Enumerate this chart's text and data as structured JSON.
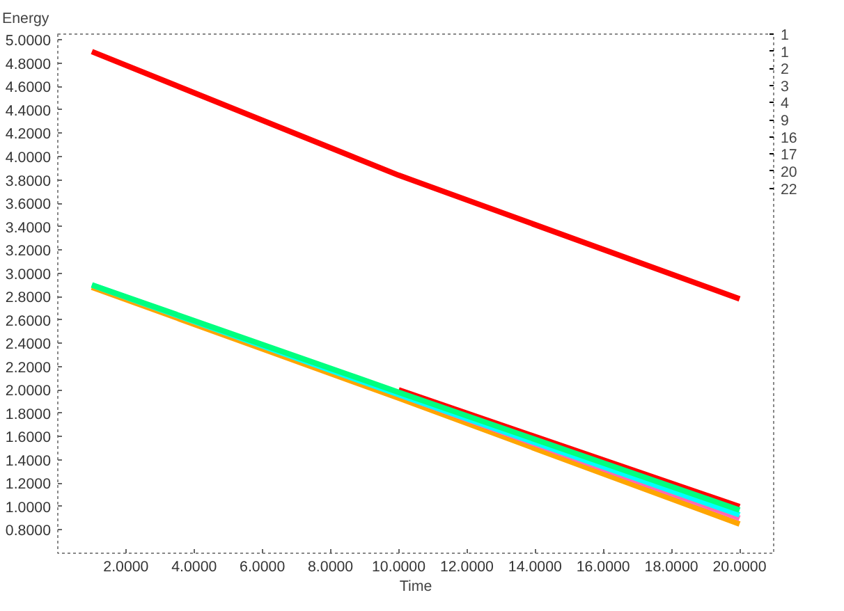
{
  "chart_data": {
    "type": "line",
    "xlabel": "Time",
    "ylabel": "Energy",
    "x": [
      1,
      10,
      20
    ],
    "series": [
      {
        "color": "#ff0000",
        "values": [
          4.9,
          3.84,
          2.78
        ]
      },
      {
        "color": "#ff0000",
        "values": [
          null,
          2.0,
          1.0
        ]
      },
      {
        "color": "#ffa500",
        "values": [
          2.88,
          1.93,
          0.85
        ]
      },
      {
        "color": "#ff69b4",
        "values": [
          null,
          1.96,
          0.9
        ]
      },
      {
        "color": "#00ffff",
        "values": [
          2.9,
          1.96,
          0.93
        ]
      },
      {
        "color": "#00ff7f",
        "values": [
          2.9,
          1.98,
          0.97
        ]
      }
    ],
    "xlim": [
      0,
      21
    ],
    "xticks": [
      {
        "value": 2,
        "label": "2.0000"
      },
      {
        "value": 4,
        "label": "4.0000"
      },
      {
        "value": 6,
        "label": "6.0000"
      },
      {
        "value": 8,
        "label": "8.0000"
      },
      {
        "value": 10,
        "label": "10.0000"
      },
      {
        "value": 12,
        "label": "12.0000"
      },
      {
        "value": 14,
        "label": "14.0000"
      },
      {
        "value": 16,
        "label": "16.0000"
      },
      {
        "value": 18,
        "label": "18.0000"
      },
      {
        "value": 20,
        "label": "20.0000"
      }
    ],
    "ylim": [
      0.6,
      5.05
    ],
    "yticks": [
      {
        "value": 0.8,
        "label": "0.8000"
      },
      {
        "value": 1.0,
        "label": "1.0000"
      },
      {
        "value": 1.2,
        "label": "1.2000"
      },
      {
        "value": 1.4,
        "label": "1.4000"
      },
      {
        "value": 1.6,
        "label": "1.6000"
      },
      {
        "value": 1.8,
        "label": "1.8000"
      },
      {
        "value": 2.0,
        "label": "2.0000"
      },
      {
        "value": 2.2,
        "label": "2.2000"
      },
      {
        "value": 2.4,
        "label": "2.4000"
      },
      {
        "value": 2.6,
        "label": "2.6000"
      },
      {
        "value": 2.8,
        "label": "2.8000"
      },
      {
        "value": 3.0,
        "label": "3.0000"
      },
      {
        "value": 3.2,
        "label": "3.2000"
      },
      {
        "value": 3.4,
        "label": "3.4000"
      },
      {
        "value": 3.6,
        "label": "3.6000"
      },
      {
        "value": 3.8,
        "label": "3.8000"
      },
      {
        "value": 4.0,
        "label": "4.0000"
      },
      {
        "value": 4.2,
        "label": "4.2000"
      },
      {
        "value": 4.4,
        "label": "4.4000"
      },
      {
        "value": 4.6,
        "label": "4.6000"
      },
      {
        "value": 4.8,
        "label": "4.8000"
      },
      {
        "value": 5.0,
        "label": "5.0000"
      }
    ],
    "annotations": [
      "1",
      "1",
      "2",
      "3",
      "4",
      "9",
      "16",
      "17",
      "20",
      "22"
    ],
    "grid": false,
    "marker": "none",
    "line_style": "solid"
  }
}
